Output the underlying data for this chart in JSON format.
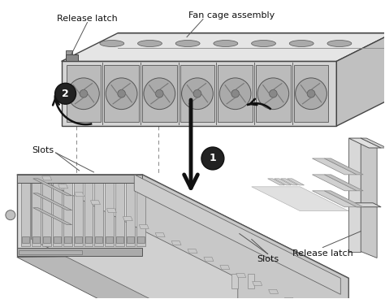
{
  "background_color": "#ffffff",
  "labels": {
    "release_latch_top": "Release latch",
    "fan_cage_assembly": "Fan cage assembly",
    "slots_left": "Slots",
    "slots_right": "Slots",
    "release_latch_right": "Release latch"
  },
  "fig_width": 4.74,
  "fig_height": 3.68,
  "dpi": 100
}
